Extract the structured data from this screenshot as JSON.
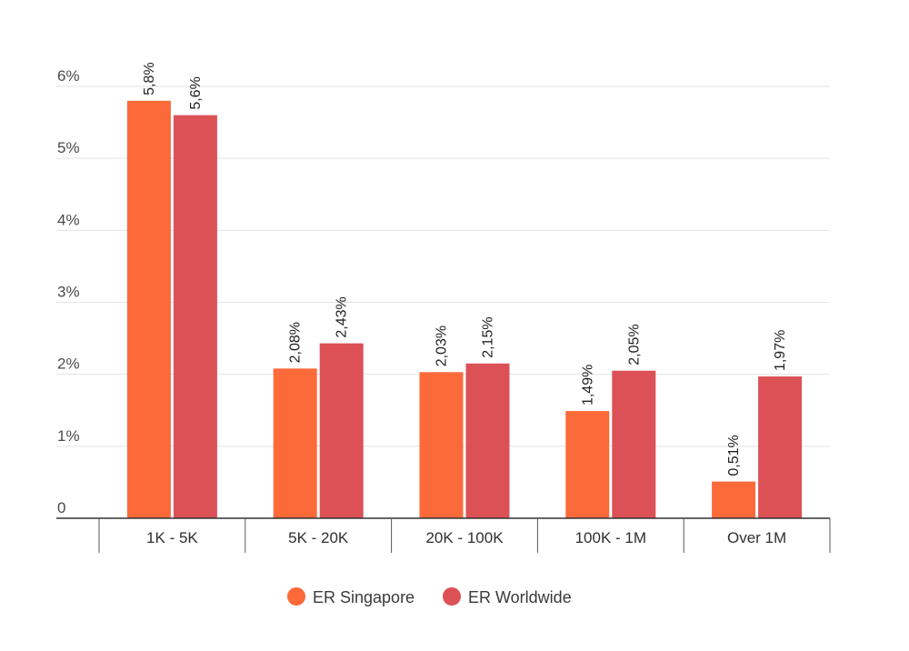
{
  "chart_data": {
    "type": "bar",
    "categories": [
      "1K - 5K",
      "5K - 20K",
      "20K - 100K",
      "100K - 1M",
      "Over 1M"
    ],
    "series": [
      {
        "name": "ER Singapore",
        "color": "#fc6a3a",
        "values": [
          5.8,
          2.08,
          2.03,
          1.49,
          0.51
        ],
        "labels": [
          "5,8%",
          "2,08%",
          "2,03%",
          "1,49%",
          "0,51%"
        ]
      },
      {
        "name": "ER Worldwide",
        "color": "#dc5156",
        "values": [
          5.6,
          2.43,
          2.15,
          2.05,
          1.97
        ],
        "labels": [
          "5,6%",
          "2,43%",
          "2,15%",
          "2,05%",
          "1,97%"
        ]
      }
    ],
    "yticks": [
      {
        "value": 0,
        "label": "0"
      },
      {
        "value": 1,
        "label": "1%"
      },
      {
        "value": 2,
        "label": "2%"
      },
      {
        "value": 3,
        "label": "3%"
      },
      {
        "value": 4,
        "label": "4%"
      },
      {
        "value": 5,
        "label": "5%"
      },
      {
        "value": 6,
        "label": "6%"
      }
    ],
    "ylim": [
      0,
      6
    ],
    "grid": true,
    "legend_position": "bottom-center",
    "title": "",
    "xlabel": "",
    "ylabel": ""
  }
}
